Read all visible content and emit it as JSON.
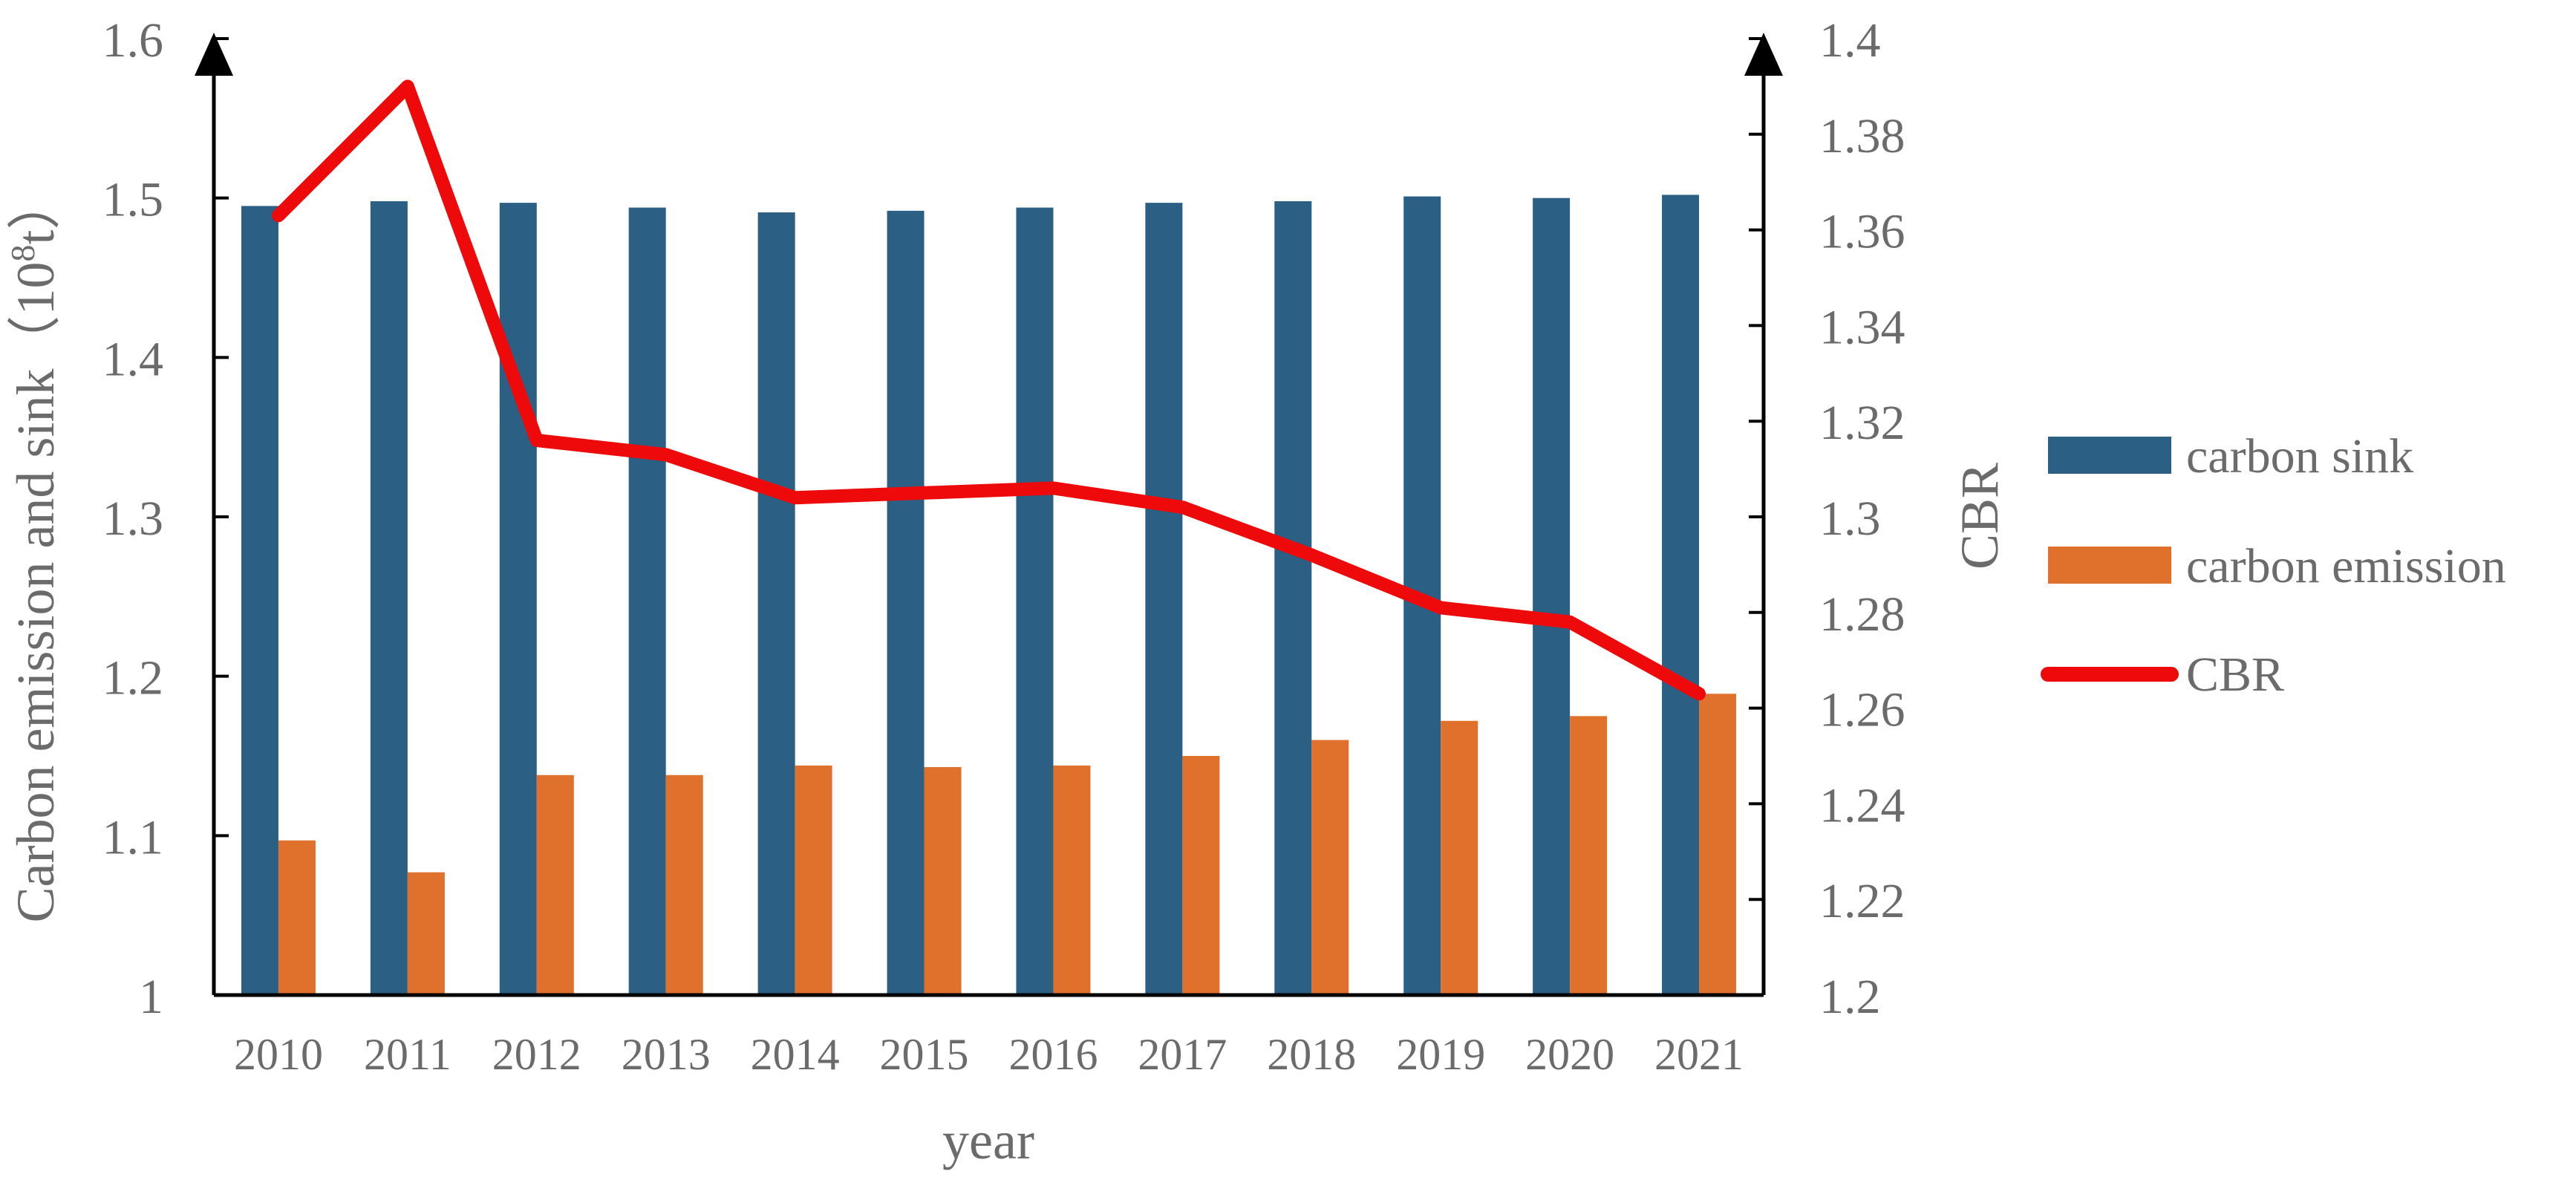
{
  "chart_data": {
    "type": "bar",
    "categories": [
      "2010",
      "2011",
      "2012",
      "2013",
      "2014",
      "2015",
      "2016",
      "2017",
      "2018",
      "2019",
      "2020",
      "2021"
    ],
    "series": [
      {
        "name": "carbon sink",
        "type": "bar",
        "axis": "left",
        "color": "#2b5f84",
        "values": [
          1.495,
          1.498,
          1.497,
          1.494,
          1.491,
          1.492,
          1.494,
          1.497,
          1.498,
          1.501,
          1.5,
          1.502
        ]
      },
      {
        "name": "carbon emission",
        "type": "bar",
        "axis": "left",
        "color": "#e0712c",
        "values": [
          1.097,
          1.077,
          1.138,
          1.138,
          1.144,
          1.143,
          1.144,
          1.15,
          1.16,
          1.172,
          1.175,
          1.189
        ]
      },
      {
        "name": "CBR",
        "type": "line",
        "axis": "right",
        "color": "#ee0a0a",
        "values": [
          1.363,
          1.39,
          1.316,
          1.313,
          1.304,
          1.305,
          1.306,
          1.302,
          1.292,
          1.281,
          1.278,
          1.263
        ]
      }
    ],
    "xlabel": "year",
    "ylabel": "Carbon emission and sink（10⁸t）",
    "ylabel_parts": {
      "main": "Carbon emission and sink（10",
      "sup": "8",
      "tail": "t）"
    },
    "y2label": "CBR",
    "ylim": [
      1,
      1.6
    ],
    "y2lim": [
      1.2,
      1.4
    ],
    "yticks": [
      "1",
      "1.1",
      "1.2",
      "1.3",
      "1.4",
      "1.5",
      "1.6"
    ],
    "y2ticks": [
      "1.2",
      "1.22",
      "1.24",
      "1.26",
      "1.28",
      "1.3",
      "1.32",
      "1.34",
      "1.36",
      "1.38",
      "1.4"
    ],
    "grid": false,
    "legend": "right"
  }
}
